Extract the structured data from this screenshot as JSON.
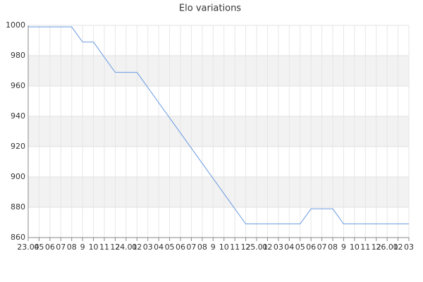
{
  "chart_data": {
    "type": "line",
    "title": "Elo variations",
    "categories": [
      "23.04",
      "05",
      "06",
      "07",
      "08",
      "9",
      "10",
      "11",
      "12",
      "24.01",
      "02",
      "03",
      "04",
      "05",
      "06",
      "07",
      "08",
      "9",
      "10",
      "11",
      "12",
      "25.01",
      "02",
      "03",
      "04",
      "05",
      "06",
      "07",
      "08",
      "9",
      "10",
      "11",
      "12",
      "26.01",
      "02",
      "03"
    ],
    "series": [
      {
        "name": "Elo",
        "color": "#6a9be0",
        "values": [
          999,
          999,
          999,
          999,
          999,
          989,
          989,
          979,
          969,
          969,
          969,
          959,
          949,
          939,
          929,
          919,
          909,
          899,
          889,
          879,
          869,
          869,
          869,
          869,
          869,
          869,
          879,
          879,
          879,
          869,
          869,
          869,
          869,
          869,
          869,
          869
        ]
      }
    ],
    "ylim": [
      860,
      1000
    ],
    "yticks": [
      860,
      880,
      900,
      920,
      940,
      960,
      980,
      1000
    ],
    "grid": true
  }
}
